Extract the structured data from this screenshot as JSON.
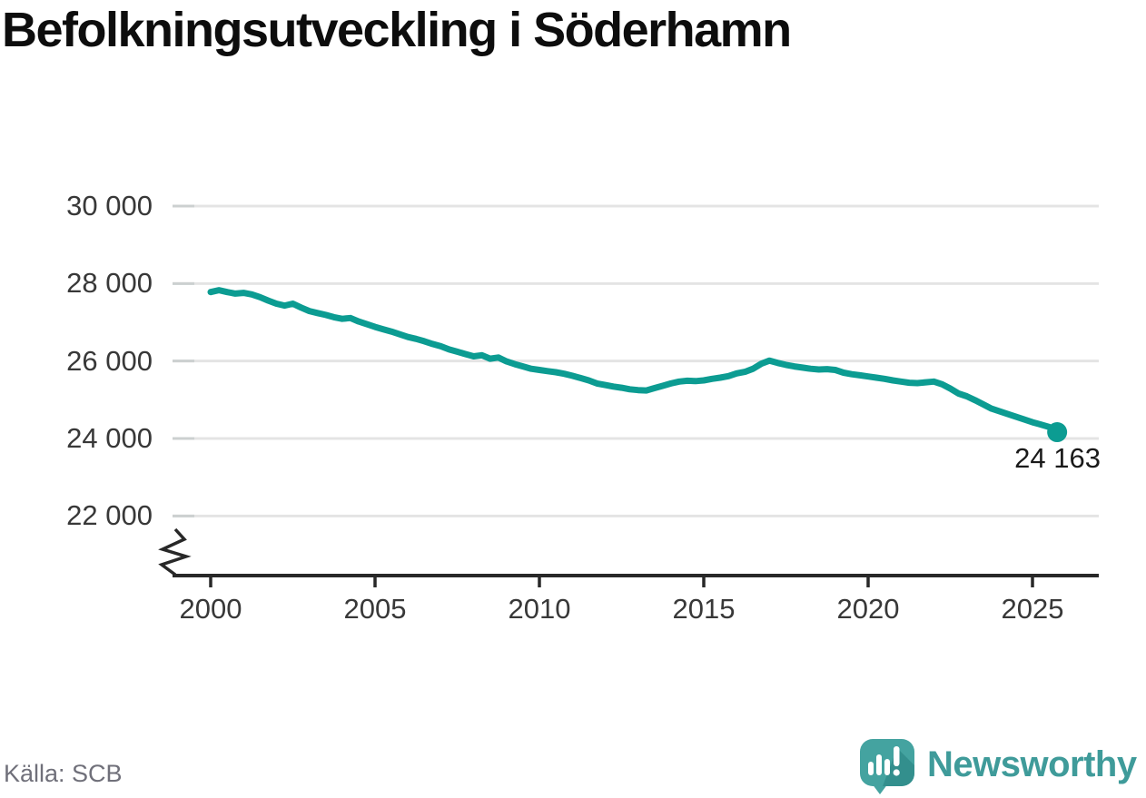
{
  "header": {
    "title": "Befolkningsutveckling i Söderhamn"
  },
  "chart_data": {
    "type": "line",
    "title": "Befolkningsutveckling i Söderhamn",
    "xlabel": "",
    "ylabel": "",
    "grid": "horizontal",
    "y_axis_break": true,
    "x_ticks": [
      {
        "value": 2000,
        "label": "2000"
      },
      {
        "value": 2005,
        "label": "2005"
      },
      {
        "value": 2010,
        "label": "2010"
      },
      {
        "value": 2015,
        "label": "2015"
      },
      {
        "value": 2020,
        "label": "2020"
      },
      {
        "value": 2025,
        "label": "2025"
      }
    ],
    "y_ticks": [
      {
        "value": 30000,
        "label": "30 000"
      },
      {
        "value": 28000,
        "label": "28 000"
      },
      {
        "value": 26000,
        "label": "26 000"
      },
      {
        "value": 24000,
        "label": "24 000"
      },
      {
        "value": 22000,
        "label": "22 000"
      }
    ],
    "series": [
      {
        "name": "Befolkning",
        "color": "#0c9c92",
        "x": [
          2000.0,
          2000.25,
          2000.5,
          2000.75,
          2001.0,
          2001.25,
          2001.5,
          2001.75,
          2002.0,
          2002.25,
          2002.5,
          2002.75,
          2003.0,
          2003.25,
          2003.5,
          2003.75,
          2004.0,
          2004.25,
          2004.5,
          2004.75,
          2005.0,
          2005.25,
          2005.5,
          2005.75,
          2006.0,
          2006.25,
          2006.5,
          2006.75,
          2007.0,
          2007.25,
          2007.5,
          2007.75,
          2008.0,
          2008.25,
          2008.5,
          2008.75,
          2009.0,
          2009.25,
          2009.5,
          2009.75,
          2010.0,
          2010.25,
          2010.5,
          2010.75,
          2011.0,
          2011.25,
          2011.5,
          2011.75,
          2012.0,
          2012.25,
          2012.5,
          2012.75,
          2013.0,
          2013.25,
          2013.5,
          2013.75,
          2014.0,
          2014.25,
          2014.5,
          2014.75,
          2015.0,
          2015.25,
          2015.5,
          2015.75,
          2016.0,
          2016.25,
          2016.5,
          2016.75,
          2017.0,
          2017.25,
          2017.5,
          2017.75,
          2018.0,
          2018.25,
          2018.5,
          2018.75,
          2019.0,
          2019.25,
          2019.5,
          2019.75,
          2020.0,
          2020.25,
          2020.5,
          2020.75,
          2021.0,
          2021.25,
          2021.5,
          2021.75,
          2022.0,
          2022.25,
          2022.5,
          2022.75,
          2023.0,
          2023.25,
          2023.5,
          2023.75,
          2024.0,
          2024.25,
          2024.5,
          2024.75,
          2025.0,
          2025.25,
          2025.5,
          2025.75
        ],
        "y": [
          27780,
          27830,
          27780,
          27740,
          27760,
          27720,
          27650,
          27560,
          27480,
          27430,
          27480,
          27380,
          27290,
          27240,
          27190,
          27130,
          27090,
          27110,
          27020,
          26950,
          26880,
          26820,
          26760,
          26690,
          26620,
          26570,
          26510,
          26440,
          26380,
          26300,
          26240,
          26180,
          26120,
          26150,
          26060,
          26090,
          25990,
          25920,
          25860,
          25800,
          25770,
          25740,
          25710,
          25670,
          25620,
          25560,
          25500,
          25420,
          25380,
          25340,
          25310,
          25270,
          25250,
          25240,
          25300,
          25360,
          25420,
          25470,
          25490,
          25480,
          25500,
          25540,
          25570,
          25610,
          25680,
          25720,
          25800,
          25930,
          26010,
          25950,
          25900,
          25860,
          25830,
          25800,
          25780,
          25790,
          25770,
          25700,
          25660,
          25630,
          25600,
          25570,
          25540,
          25500,
          25470,
          25440,
          25430,
          25450,
          25470,
          25400,
          25290,
          25160,
          25090,
          24990,
          24880,
          24770,
          24700,
          24630,
          24560,
          24490,
          24420,
          24360,
          24300,
          24163
        ]
      }
    ],
    "end_point": {
      "x": 2025.75,
      "y": 24163,
      "label": "24 163"
    }
  },
  "footer": {
    "source": "Källa: SCB"
  },
  "branding": {
    "name": "Newsworthy",
    "icon": "newsworthy-speech-bubble-chart-icon",
    "text_color": "#3f9b9a",
    "icon_color": "#44a3a0"
  }
}
